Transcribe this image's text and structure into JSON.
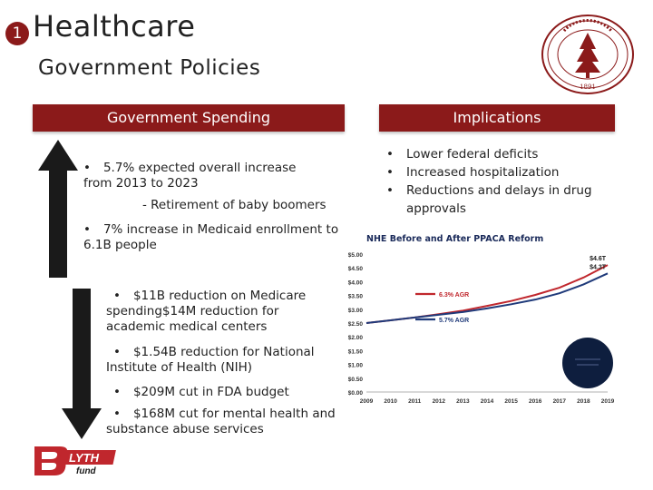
{
  "header": {
    "number": "1",
    "title": "Healthcare",
    "subtitle": "Government Policies"
  },
  "left": {
    "heading": "Government Spending",
    "items": [
      "5.7% expected overall increase from 2013 to 2023",
      "- Retirement of baby boomers",
      "7% increase in Medicaid enrollment to 6.1B people",
      "$11B reduction on Medicare spending$14M reduction for academic medical centers",
      "$1.54B reduction for National Institute of Health (NIH)",
      "$209M cut in FDA budget",
      "$168M cut for mental health and substance abuse services"
    ]
  },
  "right": {
    "heading": "Implications",
    "items": [
      "Lower federal deficits",
      "Increased hospitalization",
      "Reductions and delays in drug approvals"
    ]
  },
  "chart_data": {
    "type": "line",
    "title": "NHE Before and After PPACA Reform",
    "x": [
      "2009",
      "2010",
      "2011",
      "2012",
      "2013",
      "2014",
      "2015",
      "2016",
      "2017",
      "2018",
      "2019"
    ],
    "y_ticks": [
      "$5.00",
      "$4.50",
      "$4.00",
      "$3.50",
      "$3.00",
      "$2.50",
      "$2.00",
      "$1.50",
      "$1.00",
      "$0.50",
      "$0.00"
    ],
    "ylim": [
      0,
      5
    ],
    "series": [
      {
        "name": "6.3% AGR",
        "color": "#c0272d",
        "values": [
          2.5,
          2.6,
          2.7,
          2.82,
          2.95,
          3.12,
          3.3,
          3.52,
          3.78,
          4.15,
          4.6
        ]
      },
      {
        "name": "5.7% AGR",
        "color": "#1f3a7a",
        "values": [
          2.5,
          2.6,
          2.7,
          2.8,
          2.9,
          3.03,
          3.18,
          3.35,
          3.58,
          3.9,
          4.3
        ]
      }
    ],
    "end_labels": [
      "$4.6T",
      "$4.3T"
    ],
    "grid": false
  },
  "logo": {
    "brand": "BLYTH fund"
  },
  "seal": {
    "text": "LELAND STANFORD JUNIOR UNIVERSITY",
    "year": "1891"
  }
}
